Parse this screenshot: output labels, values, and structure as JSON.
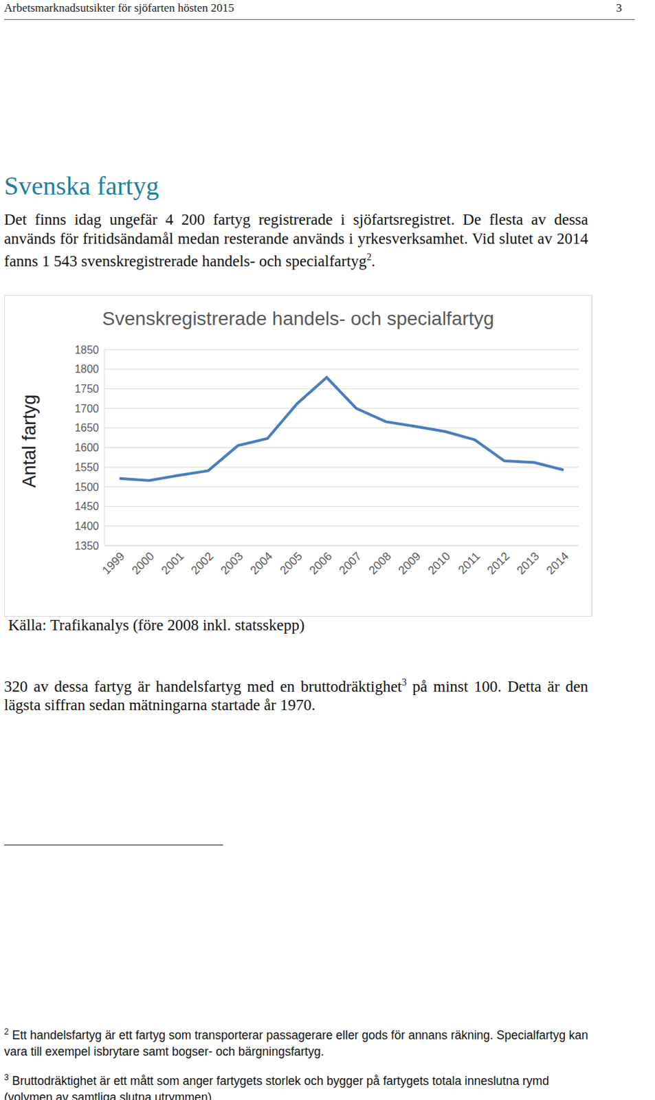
{
  "header": {
    "title": "Arbetsmarknadsutsikter för sjöfarten hösten 2015",
    "page": "3"
  },
  "heading": "Svenska fartyg",
  "intro": [
    {
      "text": "Det finns idag ungefär 4 200 fartyg registrerade i sjöfartsregistret. De flesta av dessa används för fritidsändamål medan resterande används i yrkesverksamhet. Vid slutet av 2014 fanns 1 543 svenskregistrerade handels- och specialfartyg"
    },
    {
      "sup": "2"
    },
    {
      "text": "."
    }
  ],
  "chart_data": {
    "type": "line",
    "title": "Svenskregistrerade handels- och specialfartyg",
    "y_label": "Antal fartyg",
    "categories": [
      "1999",
      "2000",
      "2001",
      "2002",
      "2003",
      "2004",
      "2005",
      "2006",
      "2007",
      "2008",
      "2009",
      "2010",
      "2011",
      "2012",
      "2013",
      "2014"
    ],
    "values": [
      1521,
      1516,
      1529,
      1541,
      1605,
      1623,
      1712,
      1779,
      1700,
      1666,
      1654,
      1641,
      1620,
      1566,
      1562,
      1543
    ],
    "color": "#4a7ebb",
    "ylim": [
      1350,
      1850
    ],
    "yticks": [
      1350,
      1400,
      1450,
      1500,
      1550,
      1600,
      1650,
      1700,
      1750,
      1800,
      1850
    ],
    "grid": true
  },
  "source": "Källa: Trafikanalys (före 2008 inkl. statsskepp)",
  "after_chart": [
    {
      "text": "320 av dessa fartyg är handelsfartyg med en bruttodräktighet"
    },
    {
      "sup": "3"
    },
    {
      "text": " på minst 100. Detta är den lägsta siffran sedan mätningarna startade år 1970."
    }
  ],
  "footnotes": [
    {
      "mark": "2",
      "text": "Ett handelsfartyg är ett fartyg som transporterar passagerare eller gods för annans räkning. Specialfartyg kan vara till exempel isbrytare samt bogser- och bärgningsfartyg."
    },
    {
      "mark": "3",
      "text": "Bruttodräktighet är ett mått som anger fartygets storlek och bygger på fartygets totala inneslutna rymd (volymen av samtliga slutna utrymmen)."
    }
  ]
}
